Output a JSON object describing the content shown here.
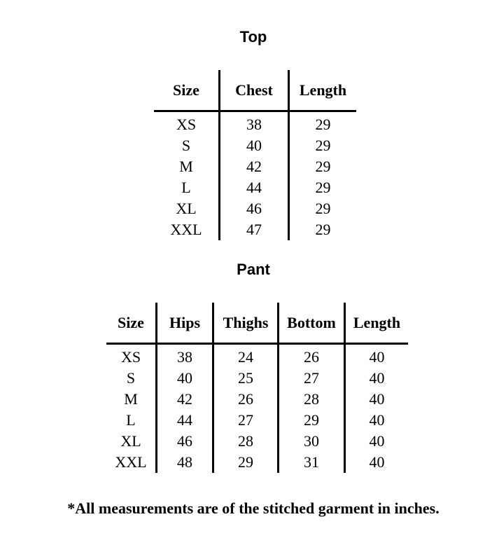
{
  "top": {
    "title": "Top",
    "headers": [
      "Size",
      "Chest",
      "Length"
    ],
    "rows": [
      [
        "XS",
        "38",
        "29"
      ],
      [
        "S",
        "40",
        "29"
      ],
      [
        "M",
        "42",
        "29"
      ],
      [
        "L",
        "44",
        "29"
      ],
      [
        "XL",
        "46",
        "29"
      ],
      [
        "XXL",
        "47",
        "29"
      ]
    ]
  },
  "pant": {
    "title": "Pant",
    "headers": [
      "Size",
      "Hips",
      "Thighs",
      "Bottom",
      "Length"
    ],
    "rows": [
      [
        "XS",
        "38",
        "24",
        "26",
        "40"
      ],
      [
        "S",
        "40",
        "25",
        "27",
        "40"
      ],
      [
        "M",
        "42",
        "26",
        "28",
        "40"
      ],
      [
        "L",
        "44",
        "27",
        "29",
        "40"
      ],
      [
        "XL",
        "46",
        "28",
        "30",
        "40"
      ],
      [
        "XXL",
        "48",
        "29",
        "31",
        "40"
      ]
    ]
  },
  "footnote": "*All measurements are of the stitched garment in inches."
}
